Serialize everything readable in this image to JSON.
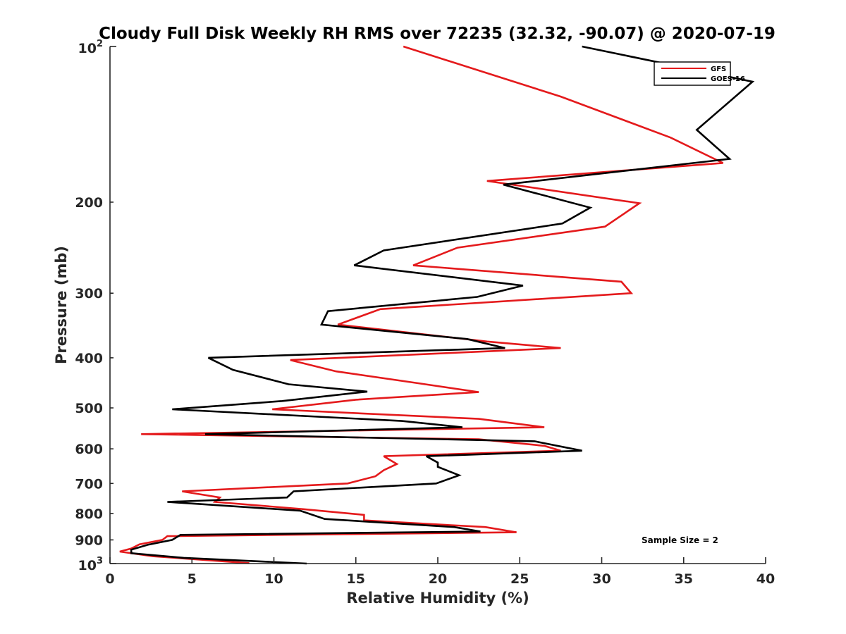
{
  "chart_data": {
    "type": "line",
    "title": "Cloudy Full Disk Weekly RH RMS over 72235 (32.32, -90.07) @ 2020-07-19",
    "xlabel": "Relative Humidity (%)",
    "ylabel": "Pressure (mb)",
    "xlim": [
      0,
      40
    ],
    "ylim": [
      100,
      1000
    ],
    "yscale": "log",
    "yreversed": true,
    "grid": false,
    "legend_position": "top-right",
    "x_ticks": [
      "0",
      "5",
      "10",
      "15",
      "20",
      "25",
      "30",
      "35",
      "40"
    ],
    "y_ticks": [
      {
        "value": 100,
        "base": "10",
        "exp": "2"
      },
      {
        "value": 200,
        "label": "200"
      },
      {
        "value": 300,
        "label": "300"
      },
      {
        "value": 400,
        "label": "400"
      },
      {
        "value": 500,
        "label": "500"
      },
      {
        "value": 600,
        "label": "600"
      },
      {
        "value": 700,
        "label": "700"
      },
      {
        "value": 800,
        "label": "800"
      },
      {
        "value": 900,
        "label": "900"
      },
      {
        "value": 1000,
        "base": "10",
        "exp": "3"
      }
    ],
    "series": [
      {
        "name": "GFS",
        "color": "#e41a1c",
        "points": [
          [
            17.9,
            100
          ],
          [
            27.5,
            125
          ],
          [
            34.2,
            150
          ],
          [
            37.4,
            168
          ],
          [
            23.0,
            182
          ],
          [
            32.3,
            201
          ],
          [
            30.2,
            223
          ],
          [
            21.2,
            245
          ],
          [
            18.5,
            265
          ],
          [
            31.2,
            285
          ],
          [
            31.8,
            300
          ],
          [
            16.5,
            322
          ],
          [
            13.9,
            345
          ],
          [
            23.0,
            372
          ],
          [
            27.5,
            383
          ],
          [
            11.0,
            404
          ],
          [
            13.8,
            425
          ],
          [
            18.8,
            448
          ],
          [
            22.5,
            466
          ],
          [
            15.0,
            482
          ],
          [
            9.9,
            503
          ],
          [
            22.5,
            525
          ],
          [
            26.5,
            545
          ],
          [
            1.9,
            562
          ],
          [
            22.5,
            575
          ],
          [
            26.5,
            592
          ],
          [
            27.5,
            605
          ],
          [
            16.7,
            620
          ],
          [
            17.5,
            642
          ],
          [
            16.7,
            660
          ],
          [
            16.2,
            678
          ],
          [
            14.5,
            700
          ],
          [
            4.4,
            725
          ],
          [
            6.7,
            745
          ],
          [
            6.4,
            760
          ],
          [
            11.8,
            785
          ],
          [
            15.5,
            805
          ],
          [
            15.5,
            825
          ],
          [
            22.9,
            850
          ],
          [
            24.8,
            870
          ],
          [
            3.5,
            885
          ],
          [
            3.2,
            900
          ],
          [
            1.8,
            918
          ],
          [
            1.3,
            935
          ],
          [
            0.6,
            948
          ],
          [
            2.6,
            968
          ],
          [
            8.5,
            998
          ]
        ]
      },
      {
        "name": "GOES-16",
        "color": "#000000",
        "points": [
          [
            28.8,
            100
          ],
          [
            39.2,
            117
          ],
          [
            35.8,
            145
          ],
          [
            37.8,
            165
          ],
          [
            24.0,
            185
          ],
          [
            29.3,
            205
          ],
          [
            27.6,
            220
          ],
          [
            16.7,
            248
          ],
          [
            14.9,
            265
          ],
          [
            25.2,
            290
          ],
          [
            22.4,
            305
          ],
          [
            13.3,
            325
          ],
          [
            12.9,
            345
          ],
          [
            21.8,
            368
          ],
          [
            24.1,
            383
          ],
          [
            6.0,
            400
          ],
          [
            7.5,
            422
          ],
          [
            10.9,
            450
          ],
          [
            15.7,
            465
          ],
          [
            10.5,
            485
          ],
          [
            3.8,
            503
          ],
          [
            17.8,
            530
          ],
          [
            21.5,
            545
          ],
          [
            5.8,
            562
          ],
          [
            25.9,
            580
          ],
          [
            28.8,
            605
          ],
          [
            19.3,
            620
          ],
          [
            20.0,
            638
          ],
          [
            20.0,
            650
          ],
          [
            21.3,
            675
          ],
          [
            19.9,
            700
          ],
          [
            11.2,
            725
          ],
          [
            10.8,
            745
          ],
          [
            3.5,
            760
          ],
          [
            11.6,
            790
          ],
          [
            13.1,
            820
          ],
          [
            21.0,
            850
          ],
          [
            22.6,
            867
          ],
          [
            4.3,
            880
          ],
          [
            3.8,
            900
          ],
          [
            2.3,
            920
          ],
          [
            1.3,
            940
          ],
          [
            1.3,
            955
          ],
          [
            4.5,
            975
          ],
          [
            12.0,
            1000
          ]
        ]
      }
    ],
    "annotations": [
      "Sample Size = 2"
    ]
  }
}
